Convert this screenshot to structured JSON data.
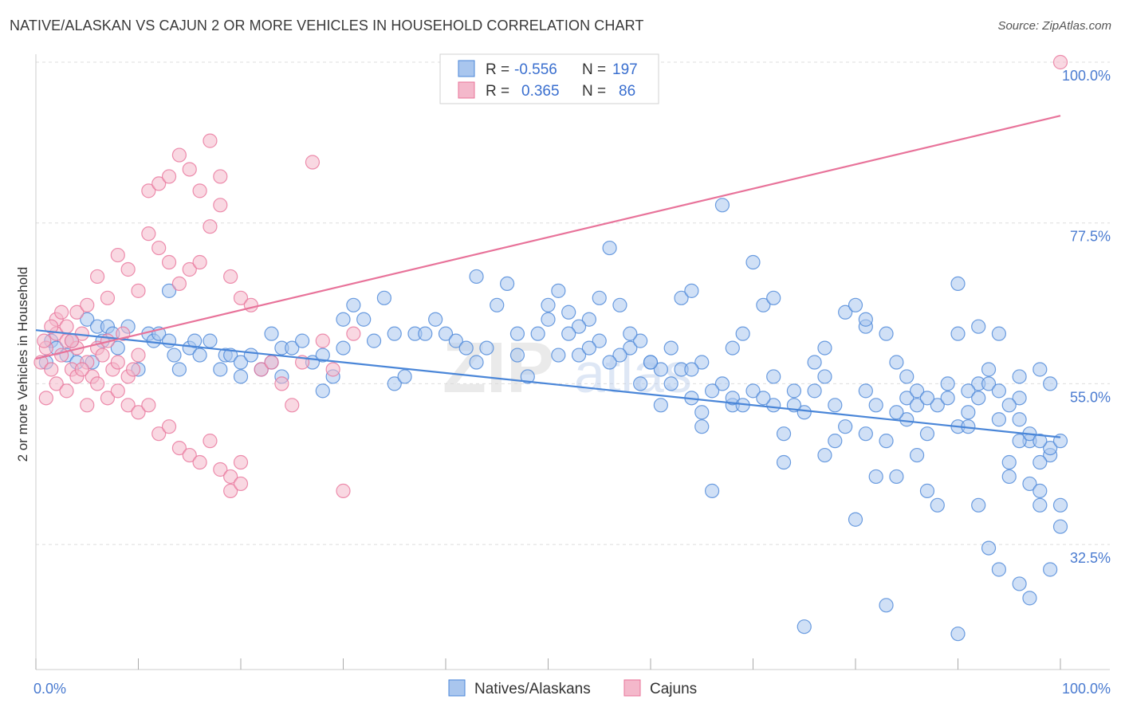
{
  "header": {
    "title": "NATIVE/ALASKAN VS CAJUN 2 OR MORE VEHICLES IN HOUSEHOLD CORRELATION CHART",
    "source": "Source: ZipAtlas.com"
  },
  "colors": {
    "blue": "#4a86d8",
    "blue_fill": "#a9c6ee",
    "pink": "#e8739a",
    "pink_fill": "#f4b8cb",
    "grid": "#dddddd"
  },
  "legend": {
    "rows": [
      {
        "r_label": "R =",
        "r_value": "-0.556",
        "n_label": "N =",
        "n_value": "197"
      },
      {
        "r_label": "R =",
        "r_value": "0.365",
        "n_label": "N =",
        "n_value": "86"
      }
    ],
    "bottom": [
      "Natives/Alaskans",
      "Cajuns"
    ]
  },
  "watermark": {
    "main": "ZIP",
    "sub": "atlas"
  },
  "chart_data": {
    "type": "scatter",
    "title": "NATIVE/ALASKAN VS CAJUN 2 OR MORE VEHICLES IN HOUSEHOLD CORRELATION CHART",
    "xlabel": "",
    "ylabel": "2 or more Vehicles in Household",
    "xlim": [
      0,
      100
    ],
    "ylim": [
      15,
      100
    ],
    "x_tick_labels": [
      "0.0%",
      "100.0%"
    ],
    "y_ticks": [
      32.5,
      55.0,
      77.5,
      100.0
    ],
    "y_tick_labels": [
      "32.5%",
      "55.0%",
      "77.5%",
      "100.0%"
    ],
    "grid": true,
    "legend_position": "top-center",
    "series": [
      {
        "name": "Natives/Alaskans",
        "color": "#4a86d8",
        "R": -0.556,
        "N": 197,
        "trend": {
          "x": [
            0,
            100
          ],
          "y": [
            62.5,
            47.5
          ]
        },
        "points": [
          [
            1,
            58
          ],
          [
            1.5,
            61
          ],
          [
            2,
            60
          ],
          [
            3,
            59
          ],
          [
            3.5,
            61
          ],
          [
            4,
            58
          ],
          [
            5,
            64
          ],
          [
            5.5,
            58
          ],
          [
            6,
            63
          ],
          [
            6.5,
            61
          ],
          [
            7,
            63
          ],
          [
            7.5,
            62
          ],
          [
            8,
            60
          ],
          [
            9,
            63
          ],
          [
            10,
            57
          ],
          [
            11,
            62
          ],
          [
            11.5,
            61
          ],
          [
            12,
            62
          ],
          [
            13,
            61
          ],
          [
            13.5,
            59
          ],
          [
            13,
            68
          ],
          [
            14,
            57
          ],
          [
            15,
            60
          ],
          [
            15.5,
            61
          ],
          [
            16,
            59
          ],
          [
            17,
            61
          ],
          [
            18,
            57
          ],
          [
            18.5,
            59
          ],
          [
            19,
            59
          ],
          [
            20,
            56
          ],
          [
            20,
            58
          ],
          [
            21,
            59
          ],
          [
            22,
            57
          ],
          [
            23,
            58
          ],
          [
            24,
            56
          ],
          [
            23,
            62
          ],
          [
            24,
            60
          ],
          [
            25,
            60
          ],
          [
            26,
            61
          ],
          [
            27,
            58
          ],
          [
            28,
            54
          ],
          [
            28,
            59
          ],
          [
            29,
            56
          ],
          [
            30,
            64
          ],
          [
            30,
            60
          ],
          [
            31,
            66
          ],
          [
            32,
            64
          ],
          [
            33,
            61
          ],
          [
            34,
            67
          ],
          [
            35,
            62
          ],
          [
            35,
            55
          ],
          [
            36,
            56
          ],
          [
            37,
            62
          ],
          [
            38,
            62
          ],
          [
            39,
            64
          ],
          [
            40,
            62
          ],
          [
            41,
            61
          ],
          [
            42,
            60
          ],
          [
            43,
            58
          ],
          [
            43,
            70
          ],
          [
            44,
            60
          ],
          [
            45,
            66
          ],
          [
            46,
            69
          ],
          [
            47,
            59
          ],
          [
            47,
            62
          ],
          [
            48,
            56
          ],
          [
            49,
            62
          ],
          [
            50,
            66
          ],
          [
            50,
            64
          ],
          [
            51,
            68
          ],
          [
            52,
            65
          ],
          [
            53,
            59
          ],
          [
            54,
            64
          ],
          [
            55,
            61
          ],
          [
            55,
            67
          ],
          [
            56,
            74
          ],
          [
            57,
            66
          ],
          [
            58,
            60
          ],
          [
            59,
            61
          ],
          [
            60,
            58
          ],
          [
            61,
            57
          ],
          [
            62,
            60
          ],
          [
            63,
            67
          ],
          [
            63,
            57
          ],
          [
            64,
            68
          ],
          [
            64,
            53
          ],
          [
            65,
            49
          ],
          [
            65,
            58
          ],
          [
            66,
            40
          ],
          [
            67,
            80
          ],
          [
            68,
            52
          ],
          [
            68,
            53
          ],
          [
            69,
            62
          ],
          [
            70,
            72
          ],
          [
            70,
            54
          ],
          [
            71,
            66
          ],
          [
            72,
            67
          ],
          [
            72,
            52
          ],
          [
            73,
            44
          ],
          [
            74,
            54
          ],
          [
            75,
            51
          ],
          [
            76,
            58
          ],
          [
            77,
            60
          ],
          [
            77,
            56
          ],
          [
            78,
            52
          ],
          [
            79,
            65
          ],
          [
            80,
            66
          ],
          [
            81,
            54
          ],
          [
            81,
            48
          ],
          [
            81,
            63
          ],
          [
            82,
            42
          ],
          [
            83,
            62
          ],
          [
            84,
            42
          ],
          [
            84,
            58
          ],
          [
            85,
            56
          ],
          [
            85,
            53
          ],
          [
            86,
            54
          ],
          [
            87,
            40
          ],
          [
            87,
            48
          ],
          [
            88,
            38
          ],
          [
            89,
            55
          ],
          [
            90,
            69
          ],
          [
            90,
            62
          ],
          [
            91,
            51
          ],
          [
            92,
            63
          ],
          [
            92,
            38
          ],
          [
            93,
            57
          ],
          [
            94,
            50
          ],
          [
            94,
            62
          ],
          [
            95,
            42
          ],
          [
            96,
            56
          ],
          [
            96,
            53
          ],
          [
            97,
            41
          ],
          [
            98,
            57
          ],
          [
            98,
            38
          ],
          [
            99,
            55
          ],
          [
            99,
            45
          ],
          [
            100,
            35
          ],
          [
            100,
            38
          ],
          [
            80,
            36
          ],
          [
            75,
            21
          ],
          [
            83,
            24
          ],
          [
            90,
            20
          ],
          [
            93,
            32
          ],
          [
            94,
            29
          ],
          [
            96,
            27
          ],
          [
            97,
            25
          ],
          [
            98,
            40
          ],
          [
            99,
            29
          ],
          [
            81,
            64
          ],
          [
            86,
            52
          ],
          [
            88,
            52
          ],
          [
            90,
            49
          ],
          [
            91,
            49
          ],
          [
            92,
            55
          ],
          [
            93,
            55
          ],
          [
            94,
            54
          ],
          [
            95,
            52
          ],
          [
            96,
            50
          ],
          [
            97,
            47
          ],
          [
            98,
            44
          ],
          [
            99,
            46
          ],
          [
            100,
            47
          ],
          [
            95,
            44
          ],
          [
            96,
            47
          ],
          [
            97,
            48
          ],
          [
            98,
            47
          ],
          [
            91,
            54
          ],
          [
            92,
            53
          ],
          [
            89,
            53
          ],
          [
            87,
            53
          ],
          [
            86,
            45
          ],
          [
            85,
            50
          ],
          [
            84,
            51
          ],
          [
            83,
            47
          ],
          [
            82,
            52
          ],
          [
            79,
            49
          ],
          [
            78,
            47
          ],
          [
            77,
            45
          ],
          [
            76,
            54
          ],
          [
            74,
            52
          ],
          [
            73,
            48
          ],
          [
            72,
            56
          ],
          [
            71,
            53
          ],
          [
            69,
            52
          ],
          [
            68,
            60
          ],
          [
            67,
            55
          ],
          [
            66,
            54
          ],
          [
            65,
            51
          ],
          [
            64,
            57
          ],
          [
            62,
            55
          ],
          [
            61,
            52
          ],
          [
            60,
            58
          ],
          [
            59,
            55
          ],
          [
            58,
            62
          ],
          [
            57,
            59
          ],
          [
            56,
            58
          ],
          [
            54,
            60
          ],
          [
            53,
            63
          ],
          [
            52,
            62
          ],
          [
            51,
            59
          ]
        ]
      },
      {
        "name": "Cajuns",
        "color": "#e8739a",
        "R": 0.365,
        "N": 86,
        "trend": {
          "x": [
            0,
            100
          ],
          "y": [
            58.5,
            92.5
          ]
        },
        "points": [
          [
            0.5,
            58
          ],
          [
            1,
            60
          ],
          [
            1.5,
            57
          ],
          [
            2,
            62
          ],
          [
            2.5,
            59
          ],
          [
            3,
            61
          ],
          [
            3.5,
            57
          ],
          [
            4,
            60
          ],
          [
            4.5,
            62
          ],
          [
            5,
            58
          ],
          [
            5.5,
            56
          ],
          [
            6,
            60
          ],
          [
            6.5,
            59
          ],
          [
            7,
            61
          ],
          [
            7.5,
            57
          ],
          [
            8,
            58
          ],
          [
            8.5,
            62
          ],
          [
            9,
            56
          ],
          [
            9.5,
            57
          ],
          [
            10,
            59
          ],
          [
            1,
            53
          ],
          [
            2,
            55
          ],
          [
            3,
            54
          ],
          [
            4,
            56
          ],
          [
            5,
            52
          ],
          [
            6,
            55
          ],
          [
            7,
            53
          ],
          [
            8,
            54
          ],
          [
            9,
            52
          ],
          [
            10,
            51
          ],
          [
            2,
            64
          ],
          [
            3,
            63
          ],
          [
            4,
            65
          ],
          [
            5,
            66
          ],
          [
            6,
            70
          ],
          [
            7,
            67
          ],
          [
            8,
            73
          ],
          [
            9,
            71
          ],
          [
            10,
            68
          ],
          [
            11,
            76
          ],
          [
            12,
            74
          ],
          [
            13,
            72
          ],
          [
            14,
            69
          ],
          [
            15,
            71
          ],
          [
            16,
            72
          ],
          [
            17,
            77
          ],
          [
            18,
            80
          ],
          [
            19,
            70
          ],
          [
            20,
            67
          ],
          [
            21,
            66
          ],
          [
            11,
            52
          ],
          [
            12,
            48
          ],
          [
            13,
            49
          ],
          [
            14,
            46
          ],
          [
            15,
            45
          ],
          [
            16,
            44
          ],
          [
            17,
            47
          ],
          [
            18,
            43
          ],
          [
            19,
            40
          ],
          [
            20,
            44
          ],
          [
            11,
            82
          ],
          [
            12,
            83
          ],
          [
            13,
            84
          ],
          [
            14,
            87
          ],
          [
            15,
            85
          ],
          [
            16,
            82
          ],
          [
            17,
            89
          ],
          [
            18,
            84
          ],
          [
            19,
            42
          ],
          [
            20,
            41
          ],
          [
            22,
            57
          ],
          [
            23,
            58
          ],
          [
            24,
            55
          ],
          [
            25,
            52
          ],
          [
            26,
            58
          ],
          [
            27,
            86
          ],
          [
            28,
            61
          ],
          [
            29,
            57
          ],
          [
            30,
            40
          ],
          [
            31,
            62
          ],
          [
            1.5,
            63
          ],
          [
            2.5,
            65
          ],
          [
            3.5,
            61
          ],
          [
            4.5,
            57
          ],
          [
            100,
            100
          ],
          [
            0.8,
            61
          ]
        ]
      }
    ]
  }
}
